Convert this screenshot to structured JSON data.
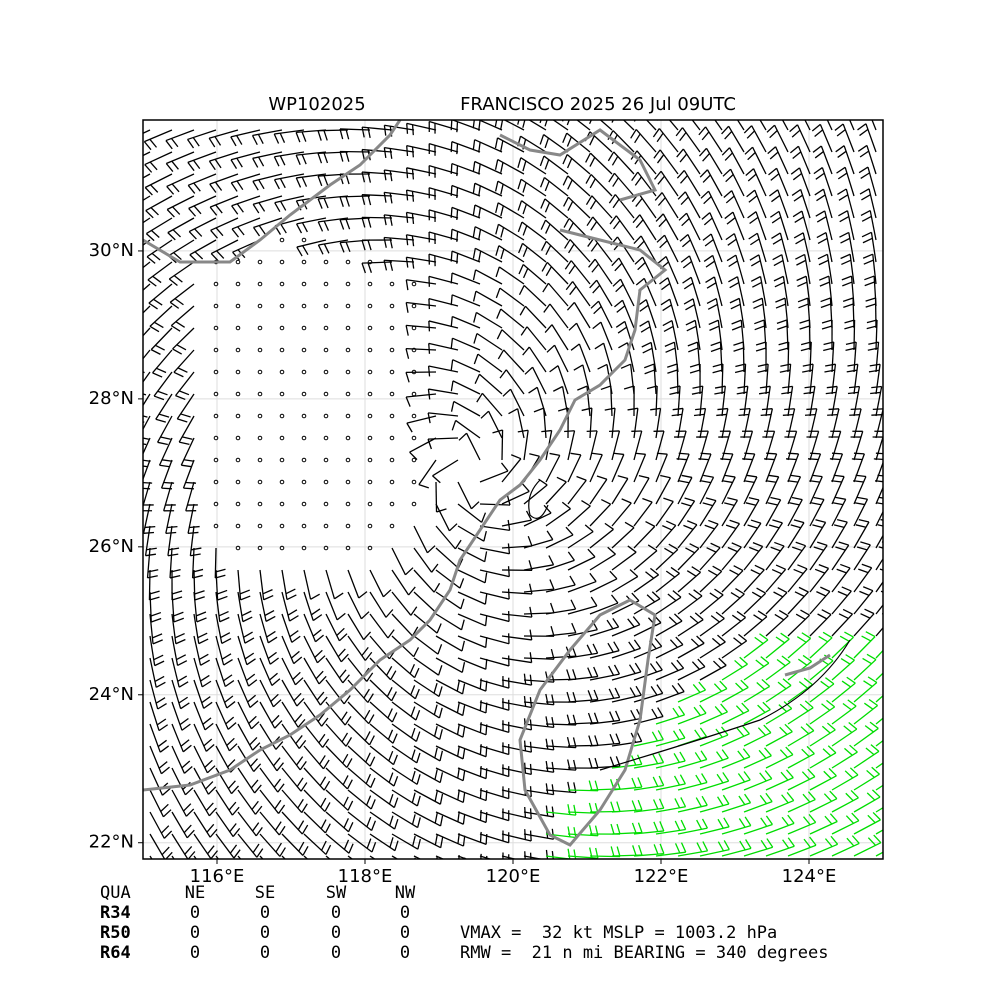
{
  "title": {
    "storm_id": "WP102025",
    "storm_time": "FRANCISCO 2025 26 Jul 09UTC"
  },
  "map": {
    "xlim": [
      115,
      125
    ],
    "ylim": [
      21.78,
      31.77
    ],
    "grid": true,
    "lon_ticks": [
      {
        "value": 116,
        "label": "116°E"
      },
      {
        "value": 118,
        "label": "118°E"
      },
      {
        "value": 120,
        "label": "120°E"
      },
      {
        "value": 122,
        "label": "122°E"
      },
      {
        "value": 124,
        "label": "124°E"
      }
    ],
    "lat_ticks": [
      {
        "value": 22,
        "label": "22°N"
      },
      {
        "value": 24,
        "label": "24°N"
      },
      {
        "value": 26,
        "label": "26°N"
      },
      {
        "value": 28,
        "label": "28°N"
      },
      {
        "value": 30,
        "label": "30°N"
      }
    ]
  },
  "table": {
    "header": [
      "QUA",
      "NE",
      "SE",
      "SW",
      "NW"
    ],
    "rows": [
      [
        "R34",
        "0",
        "0",
        "0",
        "0"
      ],
      [
        "R50",
        "0",
        "0",
        "0",
        "0"
      ],
      [
        "R64",
        "0",
        "0",
        "0",
        "0"
      ]
    ]
  },
  "info": [
    "VMAX =  32 kt MSLP = 1003.2 hPa",
    "RMW =  21 n mi BEARING = 340 degrees"
  ]
}
